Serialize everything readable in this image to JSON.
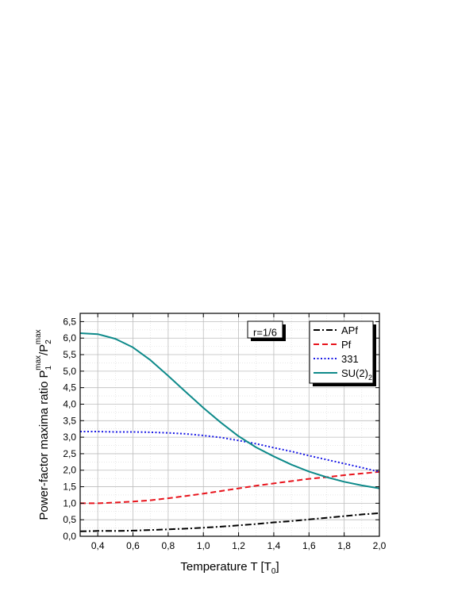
{
  "chart_data": {
    "type": "line",
    "xlabel": "Temperature T [T",
    "xlabel_sub": "0",
    "xlabel_end": "]",
    "ylabel": "Power-factor maxima ratio P",
    "ylabel_sub1": "1",
    "ylabel_sup1": "max",
    "ylabel_mid": "/P",
    "ylabel_sub2": "2",
    "ylabel_sup2": "max",
    "xlim": [
      0.3,
      2.0
    ],
    "ylim": [
      0.0,
      6.75
    ],
    "xticks": [
      "0,4",
      "0,6",
      "0,8",
      "1,0",
      "1,2",
      "1,4",
      "1,6",
      "1,8",
      "2,0"
    ],
    "xtick_values": [
      0.4,
      0.6,
      0.8,
      1.0,
      1.2,
      1.4,
      1.6,
      1.8,
      2.0
    ],
    "yticks": [
      "0,0",
      "0,5",
      "1,0",
      "1,5",
      "2,0",
      "2,5",
      "3,0",
      "3,5",
      "4,0",
      "4,5",
      "5,0",
      "5,5",
      "6,0",
      "6,5"
    ],
    "ytick_values": [
      0.0,
      0.5,
      1.0,
      1.5,
      2.0,
      2.5,
      3.0,
      3.5,
      4.0,
      4.5,
      5.0,
      5.5,
      6.0,
      6.5
    ],
    "grid": true,
    "annotation": "r=1/6",
    "legend_position": "top-right",
    "x": [
      0.3,
      0.4,
      0.5,
      0.6,
      0.7,
      0.8,
      0.9,
      1.0,
      1.1,
      1.2,
      1.3,
      1.4,
      1.5,
      1.6,
      1.7,
      1.8,
      1.9,
      2.0
    ],
    "series": [
      {
        "name": "APf",
        "sub": "",
        "color": "#000000",
        "dash": "dashdot",
        "values": [
          0.15,
          0.16,
          0.16,
          0.17,
          0.19,
          0.21,
          0.23,
          0.26,
          0.29,
          0.33,
          0.37,
          0.42,
          0.46,
          0.51,
          0.56,
          0.61,
          0.66,
          0.7
        ]
      },
      {
        "name": "Pf",
        "sub": "",
        "color": "#e8141c",
        "dash": "dash",
        "values": [
          1.0,
          1.0,
          1.02,
          1.05,
          1.09,
          1.15,
          1.22,
          1.29,
          1.37,
          1.45,
          1.53,
          1.6,
          1.67,
          1.74,
          1.79,
          1.85,
          1.9,
          1.95
        ]
      },
      {
        "name": "331",
        "sub": "",
        "color": "#1a1ae6",
        "dash": "dot",
        "values": [
          3.17,
          3.17,
          3.16,
          3.16,
          3.15,
          3.13,
          3.1,
          3.05,
          2.99,
          2.9,
          2.8,
          2.68,
          2.57,
          2.44,
          2.32,
          2.2,
          2.08,
          1.95
        ]
      },
      {
        "name": "SU(2)",
        "sub": "2",
        "color": "#0e8a8a",
        "dash": "solid",
        "values": [
          6.15,
          6.12,
          5.98,
          5.72,
          5.33,
          4.86,
          4.37,
          3.89,
          3.44,
          3.03,
          2.69,
          2.42,
          2.17,
          1.96,
          1.79,
          1.65,
          1.54,
          1.45
        ]
      }
    ]
  }
}
